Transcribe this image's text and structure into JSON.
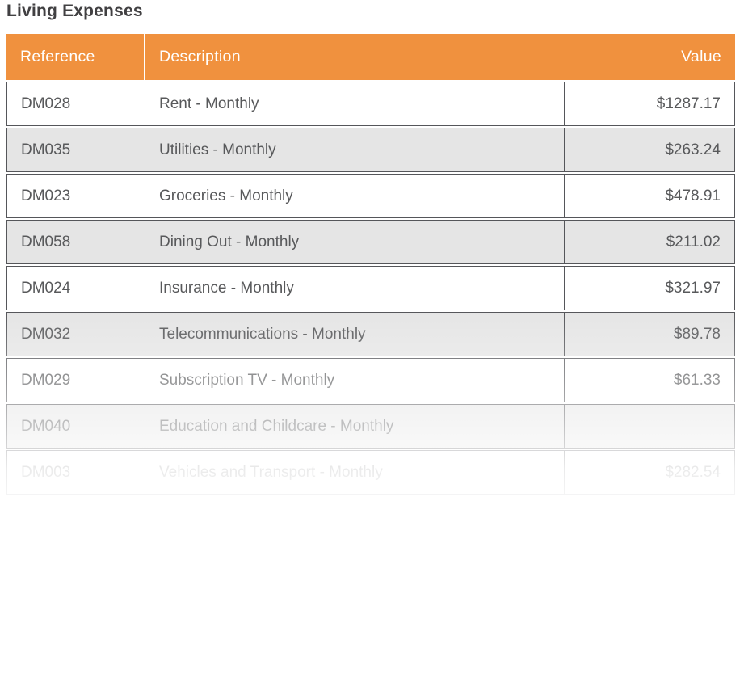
{
  "page": {
    "title": "Living Expenses"
  },
  "table": {
    "columns": [
      {
        "label": "Reference"
      },
      {
        "label": "Description"
      },
      {
        "label": "Value"
      }
    ],
    "rows": [
      {
        "reference": "DM028",
        "description": "Rent - Monthly",
        "value": "$1287.17"
      },
      {
        "reference": "DM035",
        "description": "Utilities - Monthly",
        "value": "$263.24"
      },
      {
        "reference": "DM023",
        "description": "Groceries - Monthly",
        "value": "$478.91"
      },
      {
        "reference": "DM058",
        "description": "Dining Out - Monthly",
        "value": "$211.02"
      },
      {
        "reference": "DM024",
        "description": "Insurance - Monthly",
        "value": "$321.97"
      },
      {
        "reference": "DM032",
        "description": "Telecommunications - Monthly",
        "value": "$89.78"
      },
      {
        "reference": "DM029",
        "description": "Subscription TV - Monthly",
        "value": "$61.33"
      },
      {
        "reference": "DM040",
        "description": "Education and Childcare - Monthly",
        "value": ""
      },
      {
        "reference": "DM003",
        "description": "Vehicles and Transport - Monthly",
        "value": "$282.54"
      }
    ],
    "colors": {
      "header_bg": "#F0913E",
      "header_text": "#FFFFFF",
      "row_alt_bg": "#E5E5E5",
      "border": "#55565A",
      "text": "#58595B",
      "title_text": "#414042"
    }
  }
}
